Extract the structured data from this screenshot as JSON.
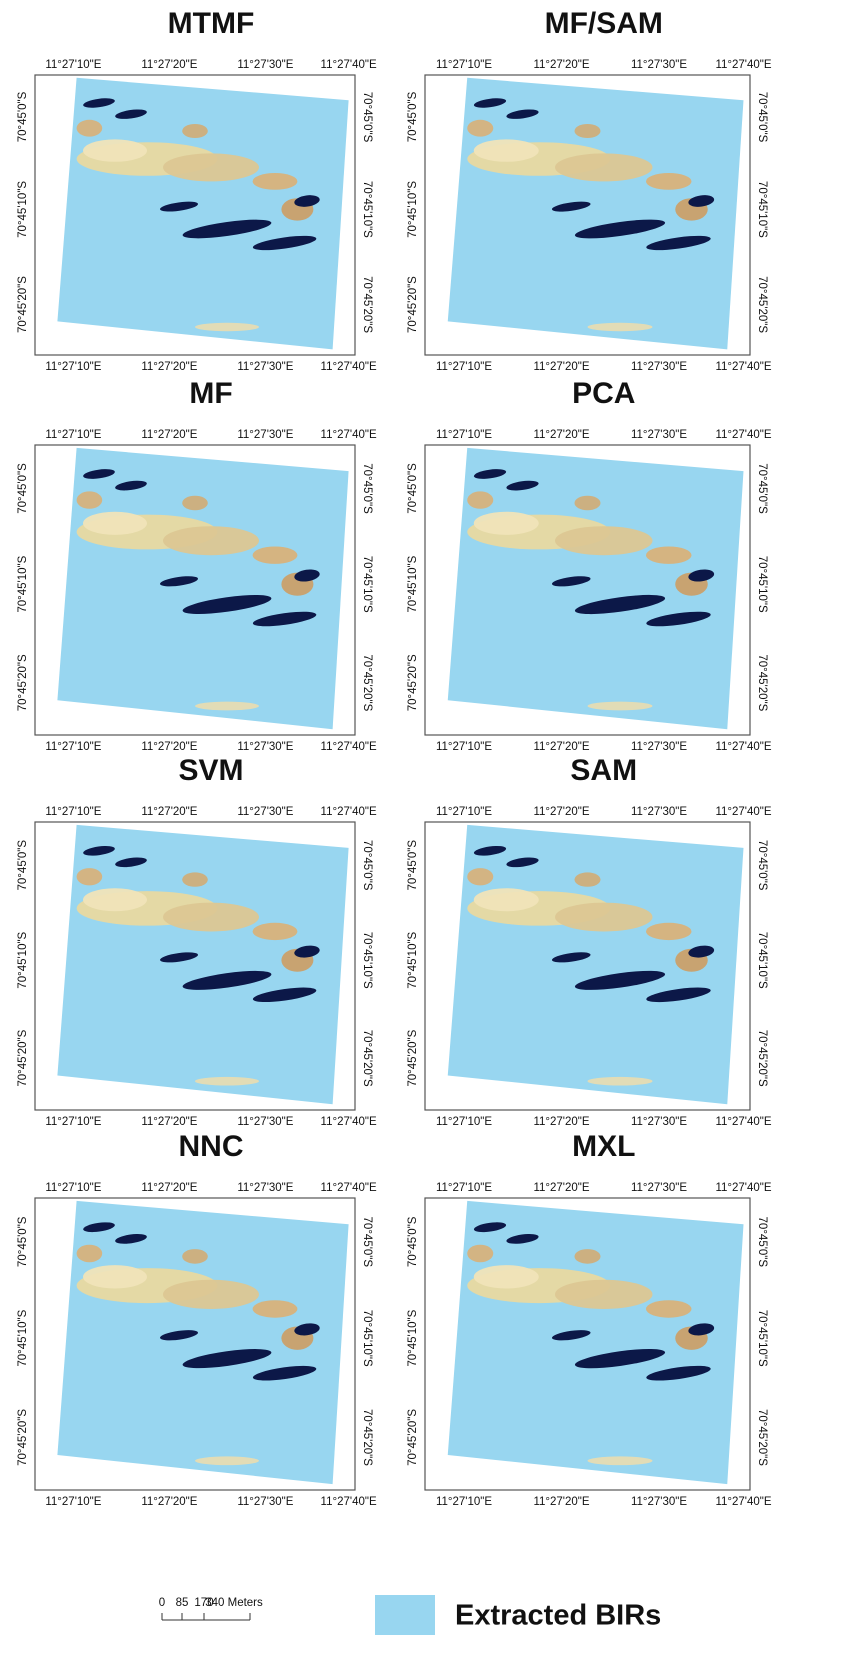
{
  "panels": [
    {
      "title": "MTMF"
    },
    {
      "title": "MF/SAM"
    },
    {
      "title": "MF"
    },
    {
      "title": "PCA"
    },
    {
      "title": "SVM"
    },
    {
      "title": "SAM"
    },
    {
      "title": "NNC"
    },
    {
      "title": "MXL"
    }
  ],
  "longitude_labels": [
    "11°27'10\"E",
    "11°27'20\"E",
    "11°27'30\"E",
    "11°27'40\"E"
  ],
  "latitude_labels": [
    "70°45'0\"S",
    "70°45'10\"S",
    "70°45'20\"S"
  ],
  "scale_bar": {
    "labels": [
      "0",
      "85",
      "170",
      "340 Meters"
    ]
  },
  "legend": {
    "label": "Extracted BIRs",
    "color": "#98d6f0"
  }
}
